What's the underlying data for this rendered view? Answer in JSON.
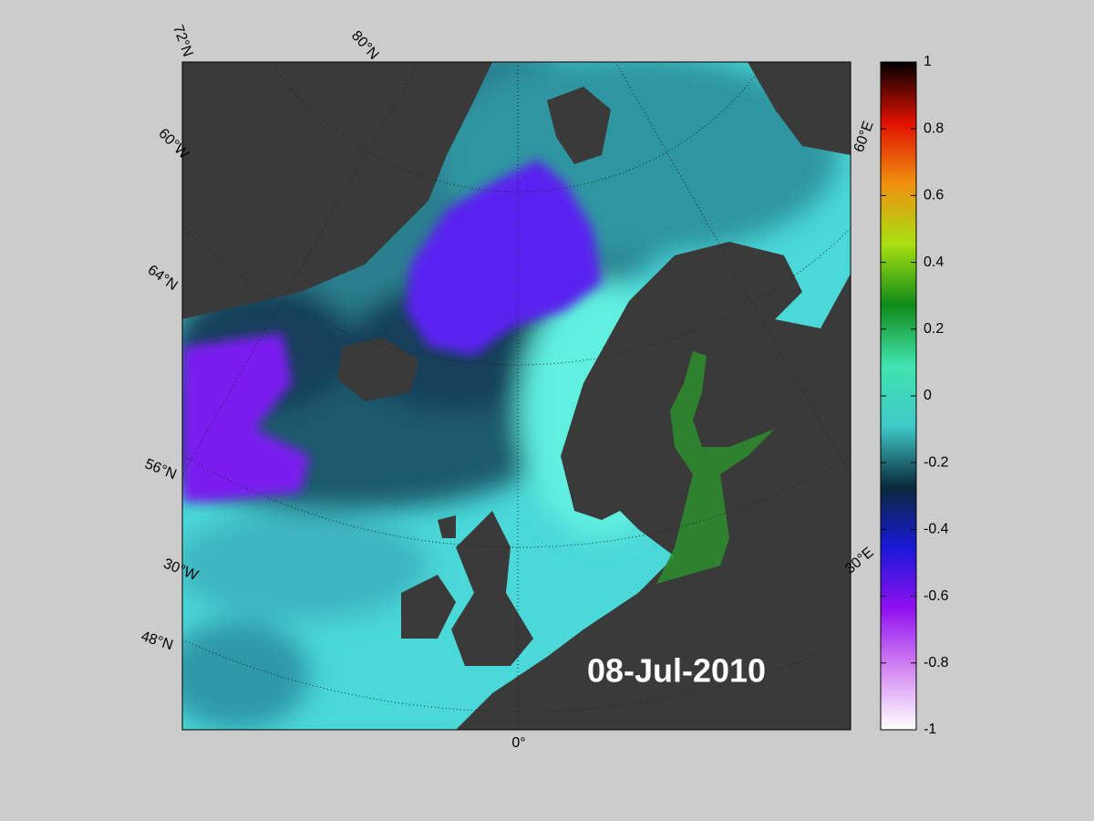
{
  "map": {
    "graticule_labels": [
      "72°N",
      "80°N",
      "60°W",
      "64°N",
      "56°N",
      "30°W",
      "48°N",
      "0°",
      "60°E",
      "30°E"
    ],
    "date": "08-Jul-2010",
    "colorbar": {
      "lim": [
        -1,
        1
      ],
      "ticks": [
        1,
        0.8,
        0.6,
        0.4,
        0.2,
        0,
        -0.2,
        -0.4,
        -0.6,
        -0.8,
        -1
      ],
      "colormap": [
        "#ffffff",
        "#d488f2",
        "#9010f0",
        "#1818d8",
        "#0a2a3a",
        "#40c8c8",
        "#40e4b0",
        "#108a18",
        "#a8e010",
        "#f09010",
        "#e01000",
        "#000000"
      ]
    }
  }
}
